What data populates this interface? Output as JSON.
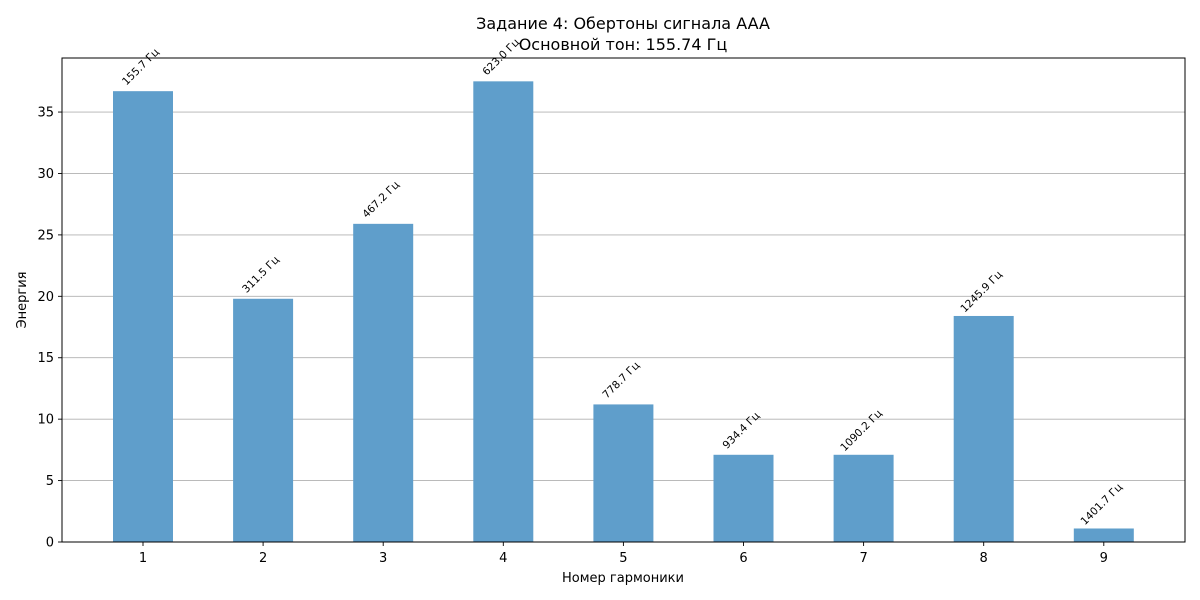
{
  "chart_data": {
    "type": "bar",
    "title": "Задание 4: Обертоны сигнала AAA",
    "subtitle": "Основной тон: 155.74 Гц",
    "xlabel": "Номер гармоники",
    "ylabel": "Энергия",
    "categories": [
      "1",
      "2",
      "3",
      "4",
      "5",
      "6",
      "7",
      "8",
      "9"
    ],
    "values": [
      36.7,
      19.8,
      25.9,
      37.5,
      11.2,
      7.1,
      7.1,
      18.4,
      1.1
    ],
    "bar_labels": [
      "155.7 Гц",
      "311.5 Гц",
      "467.2 Гц",
      "623.0 Гц",
      "778.7 Гц",
      "934.4 Гц",
      "1090.2 Гц",
      "1245.9 Гц",
      "1401.7 Гц"
    ],
    "ylim": [
      0,
      39.4
    ],
    "yticks": [
      0,
      5,
      10,
      15,
      20,
      25,
      30,
      35
    ],
    "grid": "y",
    "bar_color": "#5f9ecb"
  }
}
